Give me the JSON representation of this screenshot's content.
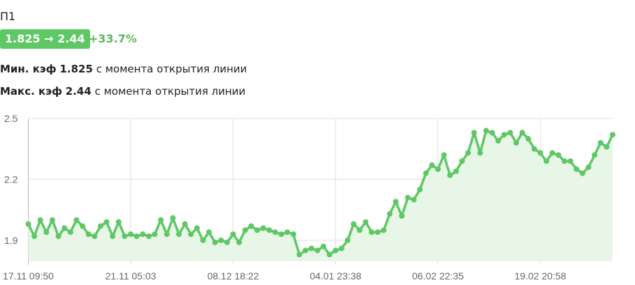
{
  "header": {
    "title": "П1",
    "badge": "1.825 → 2.44",
    "change": "+33.7%"
  },
  "stats": [
    {
      "label": "Мин. кэф",
      "value": "1.825",
      "suffix": "с момента открытия линии"
    },
    {
      "label": "Макс. кэф",
      "value": "2.44",
      "suffix": "с момента открытия линии"
    }
  ],
  "colors": {
    "line": "#5ec865",
    "fill": "#e8f6e8",
    "badge": "#5ec865",
    "change": "#5cb85c"
  },
  "chart_data": {
    "type": "area",
    "ylim": [
      1.8,
      2.5
    ],
    "y_ticks": [
      "2.5",
      "2.2",
      "1.9"
    ],
    "x_ticks": [
      "17.11 09:50",
      "21.11 05:03",
      "08.12 18:22",
      "04.01 23:38",
      "06.02 22:35",
      "19.02 20:58"
    ],
    "grid": true,
    "values": [
      1.98,
      1.92,
      2.0,
      1.94,
      2.0,
      1.92,
      1.96,
      1.94,
      2.0,
      1.97,
      1.93,
      1.92,
      1.97,
      1.99,
      1.92,
      1.99,
      1.92,
      1.93,
      1.92,
      1.93,
      1.92,
      1.93,
      2.0,
      1.93,
      2.01,
      1.93,
      1.98,
      1.93,
      1.96,
      1.9,
      1.94,
      1.89,
      1.9,
      1.89,
      1.93,
      1.89,
      1.95,
      1.97,
      1.95,
      1.96,
      1.95,
      1.94,
      1.93,
      1.94,
      1.93,
      1.83,
      1.85,
      1.86,
      1.85,
      1.87,
      1.83,
      1.85,
      1.86,
      1.9,
      1.98,
      1.95,
      1.99,
      1.94,
      1.94,
      1.95,
      2.03,
      2.09,
      2.02,
      2.11,
      2.1,
      2.15,
      2.23,
      2.27,
      2.25,
      2.32,
      2.22,
      2.24,
      2.29,
      2.33,
      2.43,
      2.33,
      2.44,
      2.43,
      2.39,
      2.42,
      2.43,
      2.38,
      2.43,
      2.4,
      2.35,
      2.33,
      2.29,
      2.33,
      2.32,
      2.29,
      2.29,
      2.25,
      2.23,
      2.26,
      2.32,
      2.38,
      2.36,
      2.42
    ]
  }
}
